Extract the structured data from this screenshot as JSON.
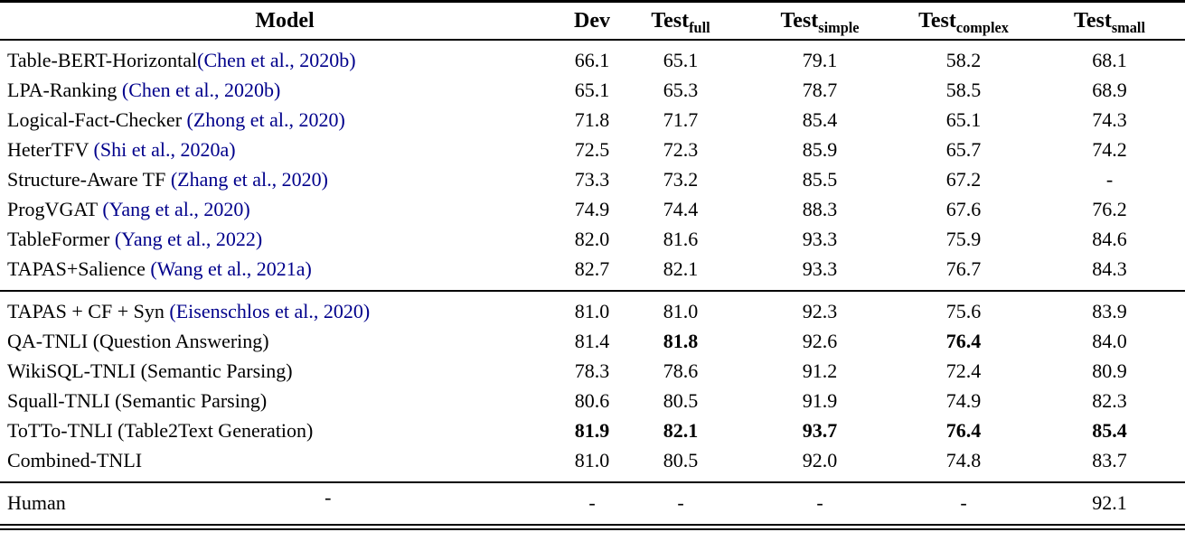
{
  "colors": {
    "citation": "#00008B",
    "text": "#000000",
    "background": "#ffffff",
    "rule": "#000000"
  },
  "table": {
    "columns": [
      {
        "label": "Model",
        "sub": ""
      },
      {
        "label": "Dev",
        "sub": ""
      },
      {
        "label": "Test",
        "sub": "full"
      },
      {
        "label": "Test",
        "sub": "simple"
      },
      {
        "label": "Test",
        "sub": "complex"
      },
      {
        "label": "Test",
        "sub": "small"
      }
    ],
    "groups": [
      {
        "name": "prior-work",
        "rows": [
          {
            "model": "Table-BERT-Horizontal",
            "citation": "(Chen et al., 2020b)",
            "values": [
              "66.1",
              "65.1",
              "79.1",
              "58.2",
              "68.1"
            ],
            "bold": [
              false,
              false,
              false,
              false,
              false
            ]
          },
          {
            "model": "LPA-Ranking ",
            "citation": "(Chen et al., 2020b)",
            "values": [
              "65.1",
              "65.3",
              "78.7",
              "58.5",
              "68.9"
            ],
            "bold": [
              false,
              false,
              false,
              false,
              false
            ]
          },
          {
            "model": "Logical-Fact-Checker ",
            "citation": "(Zhong et al., 2020)",
            "values": [
              "71.8",
              "71.7",
              "85.4",
              "65.1",
              "74.3"
            ],
            "bold": [
              false,
              false,
              false,
              false,
              false
            ]
          },
          {
            "model": "HeterTFV ",
            "citation": "(Shi et al., 2020a)",
            "values": [
              "72.5",
              "72.3",
              "85.9",
              "65.7",
              "74.2"
            ],
            "bold": [
              false,
              false,
              false,
              false,
              false
            ]
          },
          {
            "model": "Structure-Aware TF ",
            "citation": "(Zhang et al., 2020)",
            "values": [
              "73.3",
              "73.2",
              "85.5",
              "67.2",
              "-"
            ],
            "bold": [
              false,
              false,
              false,
              false,
              false
            ]
          },
          {
            "model": "ProgVGAT ",
            "citation": "(Yang et al., 2020)",
            "values": [
              "74.9",
              "74.4",
              "88.3",
              "67.6",
              "76.2"
            ],
            "bold": [
              false,
              false,
              false,
              false,
              false
            ]
          },
          {
            "model": "TableFormer ",
            "citation": "(Yang et al., 2022)",
            "values": [
              "82.0",
              "81.6",
              "93.3",
              "75.9",
              "84.6"
            ],
            "bold": [
              false,
              false,
              false,
              false,
              false
            ]
          },
          {
            "model": "TAPAS+Salience ",
            "citation": "(Wang et al., 2021a)",
            "values": [
              "82.7",
              "82.1",
              "93.3",
              "76.7",
              "84.3"
            ],
            "bold": [
              false,
              false,
              false,
              false,
              false
            ]
          }
        ]
      },
      {
        "name": "tnli-methods",
        "rows": [
          {
            "model": "TAPAS + CF + Syn ",
            "citation": "(Eisenschlos et al., 2020)",
            "values": [
              "81.0",
              "81.0",
              "92.3",
              "75.6",
              "83.9"
            ],
            "bold": [
              false,
              false,
              false,
              false,
              false
            ]
          },
          {
            "model": "QA-TNLI (Question Answering)",
            "citation": "",
            "values": [
              "81.4",
              "81.8",
              "92.6",
              "76.4",
              "84.0"
            ],
            "bold": [
              false,
              true,
              false,
              true,
              false
            ]
          },
          {
            "model": "WikiSQL-TNLI (Semantic Parsing)",
            "citation": "",
            "values": [
              "78.3",
              "78.6",
              "91.2",
              "72.4",
              "80.9"
            ],
            "bold": [
              false,
              false,
              false,
              false,
              false
            ]
          },
          {
            "model": "Squall-TNLI (Semantic Parsing)",
            "citation": "",
            "values": [
              "80.6",
              "80.5",
              "91.9",
              "74.9",
              "82.3"
            ],
            "bold": [
              false,
              false,
              false,
              false,
              false
            ]
          },
          {
            "model": "ToTTo-TNLI (Table2Text Generation)",
            "citation": "",
            "values": [
              "81.9",
              "82.1",
              "93.7",
              "76.4",
              "85.4"
            ],
            "bold": [
              true,
              true,
              true,
              true,
              true
            ]
          },
          {
            "model": "Combined-TNLI",
            "citation": "",
            "values": [
              "81.0",
              "80.5",
              "92.0",
              "74.8",
              "83.7"
            ],
            "bold": [
              false,
              false,
              false,
              false,
              false
            ]
          }
        ]
      },
      {
        "name": "human",
        "rows": [
          {
            "model": "Human",
            "citation": "",
            "model_dash": "-",
            "values": [
              "-",
              "-",
              "-",
              "-",
              "92.1"
            ],
            "bold": [
              false,
              false,
              false,
              false,
              false
            ]
          }
        ]
      }
    ]
  }
}
